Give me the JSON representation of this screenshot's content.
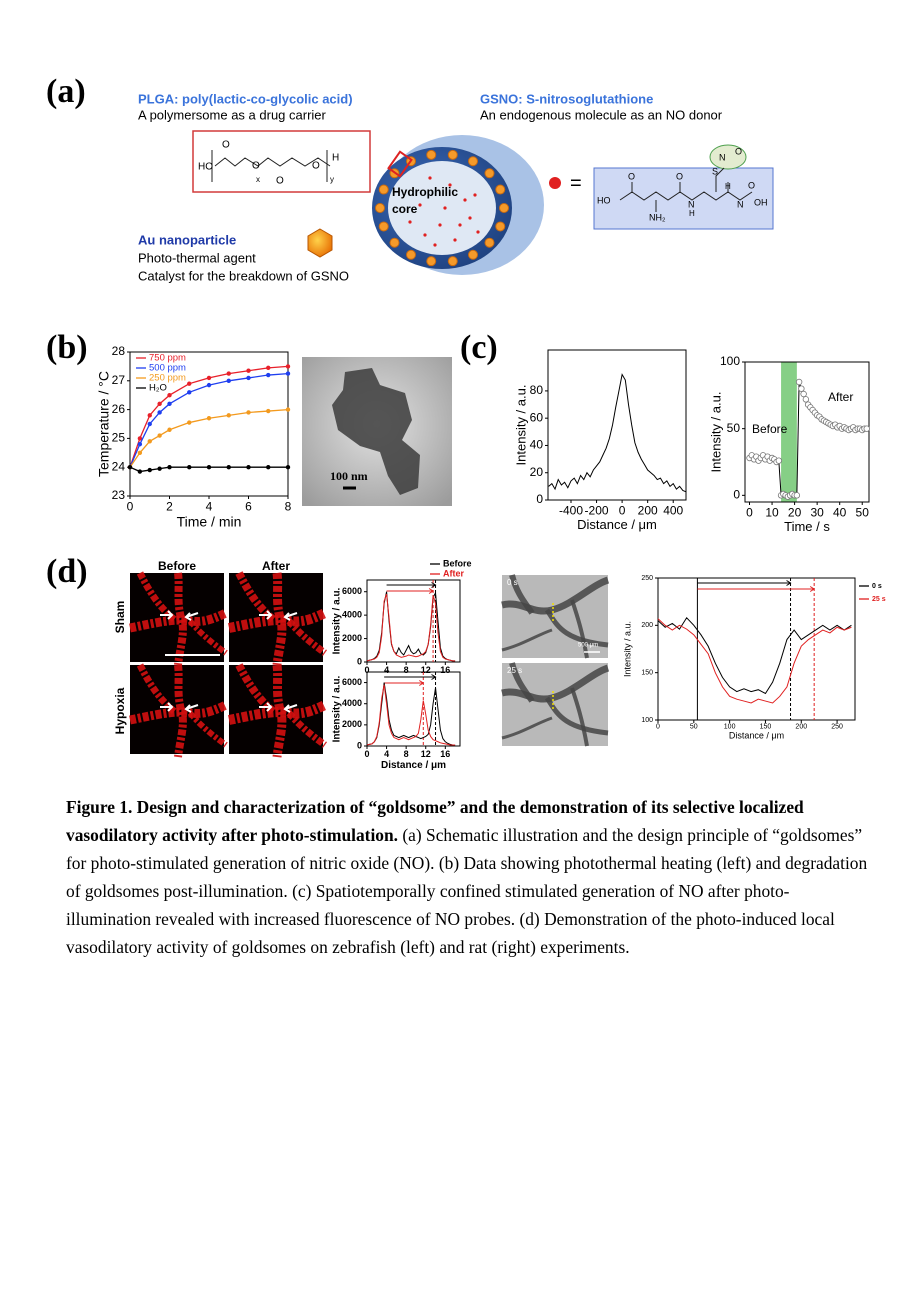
{
  "labels": [
    "(a)",
    "(b)",
    "(c)",
    "(d)"
  ],
  "panel_a": {
    "plga_title": "PLGA: poly(lactic-co-glycolic acid)",
    "plga_desc": "A polymersome as a drug carrier",
    "gsno_title": "GSNO: S-nitrosoglutathione",
    "gsno_desc": "An endogenous molecule as an NO donor",
    "au_title": "Au nanoparticle",
    "au_desc": [
      "Photo-thermal agent",
      "Catalyst for the breakdown of GSNO"
    ],
    "core_label": [
      "Hydrophilic",
      "core"
    ],
    "equals": "=",
    "plga_atoms": [
      "HO",
      "O",
      "O",
      "x",
      "O",
      "O",
      "H",
      "y"
    ],
    "gsno_atoms": [
      "HO",
      "O",
      "NH₂",
      "O",
      "N",
      "H",
      "S",
      "N",
      "O",
      "H",
      "N",
      "O",
      "OH"
    ]
  },
  "panel_b": {
    "scale_bar": "100 nm"
  },
  "panel_d": {
    "columns": [
      "Before",
      "After"
    ],
    "rows": [
      "Sham",
      "Hypoxia"
    ],
    "rat_images": [
      "0 s",
      "25 s"
    ],
    "scale_bar": "500 μm"
  },
  "chart_data": [
    {
      "type": "line",
      "x_label": "Time / min",
      "y_label": "Temperature / °C",
      "x": [
        0,
        0.5,
        1,
        1.5,
        2,
        3,
        4,
        5,
        6,
        7,
        8
      ],
      "xlim": [
        0,
        8
      ],
      "ylim": [
        23,
        28
      ],
      "xticks": [
        0,
        2,
        4,
        6,
        8
      ],
      "yticks": [
        23,
        24,
        25,
        26,
        27,
        28
      ],
      "legend": "upper left",
      "marker": "dot",
      "series": [
        {
          "name": "750 ppm",
          "color": "#e8202a",
          "values": [
            24,
            25.0,
            25.8,
            26.2,
            26.5,
            26.9,
            27.1,
            27.25,
            27.35,
            27.45,
            27.5
          ]
        },
        {
          "name": "500 ppm",
          "color": "#1f3ff0",
          "values": [
            24,
            24.8,
            25.5,
            25.9,
            26.2,
            26.6,
            26.85,
            27.0,
            27.1,
            27.2,
            27.25
          ]
        },
        {
          "name": "250 ppm",
          "color": "#f39a1e",
          "values": [
            24,
            24.5,
            24.9,
            25.1,
            25.3,
            25.55,
            25.7,
            25.8,
            25.9,
            25.95,
            26.0
          ]
        },
        {
          "name": "H₂O",
          "color": "#000000",
          "values": [
            24,
            23.85,
            23.9,
            23.95,
            24.0,
            24.0,
            24.0,
            24.0,
            24.0,
            24.0,
            24.0
          ]
        }
      ]
    },
    {
      "type": "line",
      "x_label": "Distance / μm",
      "y_label": "Intensity / a.u.",
      "x": [
        -575,
        -550,
        -525,
        -500,
        -475,
        -450,
        -425,
        -400,
        -375,
        -350,
        -325,
        -300,
        -275,
        -250,
        -225,
        -200,
        -175,
        -150,
        -125,
        -100,
        -75,
        -50,
        -25,
        0,
        25,
        50,
        75,
        100,
        125,
        150,
        175,
        200,
        225,
        250,
        275,
        300,
        325,
        350,
        375,
        400,
        425,
        450,
        475,
        500
      ],
      "xlim": [
        -580,
        500
      ],
      "ylim": [
        0,
        110
      ],
      "xticks": [
        -400,
        -200,
        0,
        200,
        400
      ],
      "yticks": [
        0,
        20,
        40,
        60,
        80
      ],
      "series": [
        {
          "color": "#000000",
          "values": [
            10,
            12,
            8,
            15,
            11,
            13,
            9,
            14,
            16,
            12,
            18,
            15,
            20,
            17,
            22,
            25,
            28,
            33,
            38,
            45,
            55,
            68,
            80,
            92,
            88,
            70,
            55,
            42,
            35,
            30,
            26,
            22,
            20,
            18,
            15,
            16,
            12,
            14,
            10,
            12,
            8,
            10,
            7,
            6
          ]
        }
      ]
    },
    {
      "type": "line",
      "x_label": "Time / s",
      "y_label": "Intensity / a.u.",
      "x": [
        0,
        1,
        2,
        3,
        4,
        5,
        6,
        7,
        8,
        9,
        10,
        11,
        12,
        13,
        14,
        15,
        16,
        17,
        18,
        19,
        20,
        21,
        22,
        23,
        24,
        25,
        26,
        27,
        28,
        29,
        30,
        31,
        32,
        33,
        34,
        35,
        36,
        37,
        38,
        39,
        40,
        41,
        42,
        43,
        44,
        45,
        46,
        47,
        48,
        49,
        50,
        51,
        52
      ],
      "xlim": [
        -2,
        53
      ],
      "ylim": [
        -5,
        100
      ],
      "xticks": [
        0,
        10,
        20,
        30,
        40,
        50
      ],
      "yticks": [
        0,
        50,
        100
      ],
      "marker": "ring",
      "highlight": {
        "x": [
          14,
          21
        ],
        "color": "#86cf86"
      },
      "annotations": [
        "Before",
        "After"
      ],
      "series": [
        {
          "color": "#000000",
          "values": [
            28,
            30,
            27,
            29,
            26,
            28,
            30,
            27,
            29,
            26,
            28,
            27,
            25,
            26,
            0,
            1,
            0,
            -1,
            0,
            1,
            0,
            0,
            85,
            80,
            76,
            72,
            68,
            66,
            64,
            62,
            60,
            59,
            57,
            56,
            55,
            54,
            53,
            52,
            53,
            51,
            52,
            50,
            51,
            50,
            49,
            50,
            51,
            49,
            50,
            50,
            49,
            50,
            50
          ]
        }
      ]
    },
    {
      "type": "line",
      "y_label": "Intensity / a.u.",
      "x": [
        0,
        0.5,
        1,
        1.5,
        2,
        2.5,
        3,
        3.5,
        4,
        4.5,
        5,
        5.5,
        6,
        6.5,
        7,
        7.5,
        8,
        8.5,
        9,
        9.5,
        10,
        10.5,
        11,
        11.5,
        12,
        12.5,
        13,
        13.5,
        14,
        14.5,
        15,
        15.5,
        16,
        16.5,
        17,
        17.5,
        18
      ],
      "xlim": [
        0,
        19
      ],
      "ylim": [
        0,
        7000
      ],
      "xticks": [
        0,
        4,
        8,
        12,
        16
      ],
      "yticks": [
        0,
        2000,
        4000,
        6000
      ],
      "legend": "outside upper right",
      "vlines": [
        {
          "x": 14,
          "color": "#000000"
        },
        {
          "x": 13.5,
          "color": "#e02020"
        }
      ],
      "arrows": [
        {
          "from": 4,
          "to": 14,
          "color": "#000000"
        },
        {
          "from": 4,
          "to": 13.5,
          "color": "#e02020"
        }
      ],
      "series": [
        {
          "name": "Before",
          "color": "#000000",
          "values": [
            100,
            150,
            200,
            300,
            500,
            1000,
            2500,
            5000,
            6000,
            3500,
            1500,
            900,
            700,
            1200,
            800,
            600,
            1000,
            1400,
            900,
            700,
            800,
            1100,
            700,
            600,
            800,
            1500,
            3000,
            5500,
            5900,
            3500,
            1200,
            500,
            300,
            200,
            150,
            100,
            100
          ]
        },
        {
          "name": "After",
          "color": "#e02020",
          "values": [
            100,
            150,
            200,
            250,
            400,
            800,
            2200,
            5200,
            5800,
            3800,
            1600,
            900,
            600,
            500,
            400,
            450,
            500,
            600,
            550,
            500,
            450,
            500,
            600,
            700,
            900,
            1500,
            3200,
            5700,
            5000,
            2500,
            900,
            400,
            250,
            200,
            150,
            100,
            100
          ]
        }
      ]
    },
    {
      "type": "line",
      "x_label": "Distance / μm",
      "y_label": "Intensity / a.u.",
      "x": [
        0,
        0.5,
        1,
        1.5,
        2,
        2.5,
        3,
        3.5,
        4,
        4.5,
        5,
        5.5,
        6,
        6.5,
        7,
        7.5,
        8,
        8.5,
        9,
        9.5,
        10,
        10.5,
        11,
        11.5,
        12,
        12.5,
        13,
        13.5,
        14,
        14.5,
        15,
        15.5,
        16,
        16.5,
        17,
        17.5,
        18
      ],
      "xlim": [
        0,
        19
      ],
      "ylim": [
        0,
        7000
      ],
      "xticks": [
        0,
        4,
        8,
        12,
        16
      ],
      "yticks": [
        0,
        2000,
        4000,
        6000
      ],
      "vlines": [
        {
          "x": 14,
          "color": "#000000"
        },
        {
          "x": 11.5,
          "color": "#e02020"
        }
      ],
      "arrows": [
        {
          "from": 3.5,
          "to": 14,
          "color": "#000000"
        },
        {
          "from": 3.5,
          "to": 11.5,
          "color": "#e02020"
        }
      ],
      "series": [
        {
          "color": "#000000",
          "values": [
            100,
            150,
            200,
            400,
            800,
            2000,
            4000,
            6000,
            4500,
            2500,
            1500,
            1000,
            900,
            800,
            900,
            1000,
            900,
            800,
            900,
            1000,
            900,
            800,
            700,
            800,
            900,
            1100,
            2000,
            4000,
            5500,
            3500,
            1500,
            700,
            400,
            250,
            150,
            100,
            100
          ]
        },
        {
          "color": "#e02020",
          "values": [
            100,
            150,
            200,
            400,
            900,
            2200,
            4500,
            5800,
            4000,
            2000,
            1200,
            800,
            700,
            600,
            700,
            800,
            700,
            600,
            700,
            800,
            900,
            1200,
            2500,
            4300,
            3000,
            1500,
            900,
            600,
            500,
            400,
            300,
            250,
            200,
            150,
            100,
            100,
            100
          ]
        }
      ]
    },
    {
      "type": "line",
      "x_label": "Distance / μm",
      "y_label": "Intensity / a.u.",
      "x": [
        0,
        10,
        20,
        30,
        40,
        50,
        60,
        70,
        80,
        90,
        100,
        110,
        120,
        130,
        140,
        150,
        160,
        170,
        180,
        190,
        200,
        210,
        220,
        230,
        240,
        250,
        260,
        270
      ],
      "xlim": [
        0,
        275
      ],
      "ylim": [
        100,
        250
      ],
      "xticks": [
        0,
        50,
        100,
        150,
        200,
        250
      ],
      "yticks": [
        100,
        150,
        200,
        250
      ],
      "legend": "right",
      "vlines": [
        {
          "x": 55,
          "color": "#000000"
        },
        {
          "x": 185,
          "color": "#000000",
          "dash": true
        },
        {
          "x": 218,
          "color": "#e02020",
          "dash": true
        }
      ],
      "arrows": [
        {
          "from": 55,
          "to": 185,
          "color": "#000000"
        },
        {
          "from": 55,
          "to": 218,
          "color": "#e02020"
        }
      ],
      "series": [
        {
          "name": "0 s",
          "color": "#000000",
          "values": [
            205,
            198,
            202,
            196,
            208,
            200,
            190,
            178,
            160,
            145,
            135,
            130,
            133,
            130,
            132,
            128,
            140,
            160,
            185,
            195,
            185,
            190,
            195,
            200,
            195,
            200,
            195,
            200
          ]
        },
        {
          "name": "25 s",
          "color": "#e02020",
          "values": [
            207,
            200,
            195,
            200,
            196,
            190,
            180,
            170,
            150,
            135,
            125,
            122,
            120,
            118,
            122,
            120,
            118,
            125,
            135,
            160,
            178,
            185,
            190,
            195,
            192,
            198,
            195,
            198
          ]
        }
      ]
    }
  ],
  "caption": {
    "bold": "Figure 1. Design and characterization of “goldsome” and the demonstration of its selective localized vasodilatory activity after photo-stimulation.",
    "text": "(a) Schematic illustration and the design principle of “goldsomes” for photo-stimulated generation of nitric oxide (NO). (b) Data showing photothermal heating (left) and degradation of goldsomes post-illumination. (c) Spatiotemporally confined stimulated generation of NO after photo-illumination revealed with increased fluorescence of NO probes. (d) Demonstration of the photo-induced local vasodilatory activity of goldsomes on zebrafish (left) and rat (right) experiments."
  }
}
